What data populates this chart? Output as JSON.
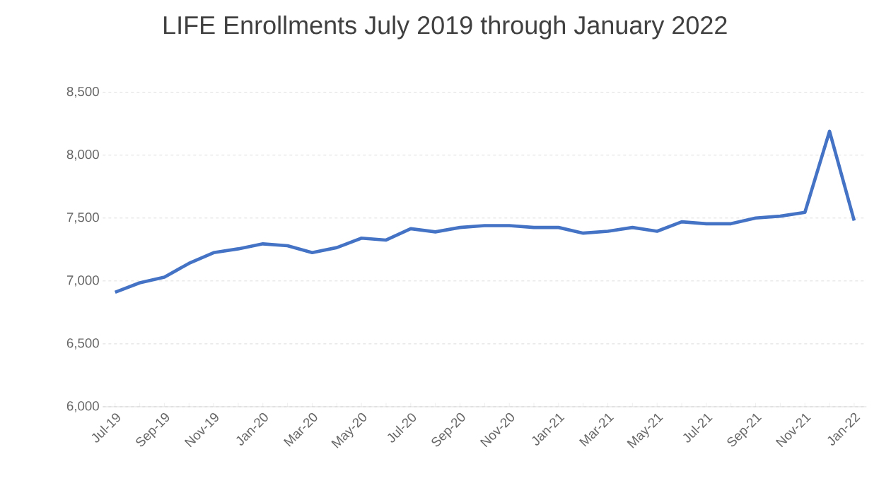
{
  "chart_data": {
    "type": "line",
    "title": "LIFE Enrollments July 2019 through January 2022",
    "categories": [
      "Jul-19",
      null,
      "Sep-19",
      null,
      "Nov-19",
      null,
      "Jan-20",
      null,
      "Mar-20",
      null,
      "May-20",
      null,
      "Jul-20",
      null,
      "Sep-20",
      null,
      "Nov-20",
      null,
      "Jan-21",
      null,
      "Mar-21",
      null,
      "May-21",
      null,
      "Jul-21",
      null,
      "Sep-21",
      null,
      "Nov-21",
      null,
      "Jan-22"
    ],
    "values": [
      6910,
      6985,
      7030,
      7140,
      7225,
      7255,
      7295,
      7280,
      7225,
      7265,
      7340,
      7325,
      7415,
      7390,
      7425,
      7440,
      7440,
      7425,
      7425,
      7380,
      7395,
      7425,
      7395,
      7470,
      7455,
      7455,
      7500,
      7515,
      7545,
      8190,
      7480
    ],
    "color": "#4472c4",
    "ylim": [
      6000,
      8500
    ],
    "yticks": [
      {
        "value": 6000,
        "label": "6,000"
      },
      {
        "value": 6500,
        "label": "6,500"
      },
      {
        "value": 7000,
        "label": "7,000"
      },
      {
        "value": 7500,
        "label": "7,500"
      },
      {
        "value": 8000,
        "label": "8,000"
      },
      {
        "value": 8500,
        "label": "8,500"
      }
    ],
    "grid": "y",
    "marker": "none",
    "line_style": "solid"
  }
}
